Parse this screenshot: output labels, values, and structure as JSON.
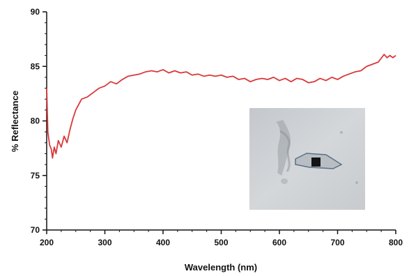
{
  "chart_data": {
    "type": "line",
    "title": "",
    "xlabel": "Wavelength (nm)",
    "ylabel": "% Reflectance",
    "xlim": [
      200,
      800
    ],
    "ylim": [
      70,
      90
    ],
    "xticks": [
      200,
      300,
      400,
      500,
      600,
      700,
      800
    ],
    "yticks": [
      70,
      75,
      80,
      85,
      90
    ],
    "grid": false,
    "legend": "none",
    "series": [
      {
        "color": "#d9383a",
        "x": [
          200,
          202,
          205,
          208,
          210,
          213,
          216,
          220,
          225,
          230,
          235,
          240,
          245,
          250,
          260,
          270,
          280,
          290,
          300,
          310,
          320,
          330,
          340,
          350,
          360,
          370,
          380,
          390,
          400,
          410,
          420,
          430,
          440,
          450,
          460,
          470,
          480,
          490,
          500,
          510,
          520,
          530,
          540,
          550,
          560,
          570,
          580,
          590,
          600,
          610,
          620,
          630,
          640,
          650,
          660,
          670,
          680,
          690,
          700,
          710,
          720,
          730,
          740,
          750,
          760,
          770,
          780,
          785,
          790,
          795,
          800
        ],
        "y": [
          83.0,
          79.0,
          77.8,
          77.4,
          76.6,
          77.6,
          77.0,
          78.2,
          77.6,
          78.6,
          78.0,
          79.2,
          80.2,
          81.0,
          82.0,
          82.2,
          82.6,
          83.0,
          83.2,
          83.6,
          83.4,
          83.8,
          84.1,
          84.2,
          84.3,
          84.5,
          84.6,
          84.5,
          84.7,
          84.4,
          84.6,
          84.4,
          84.5,
          84.2,
          84.3,
          84.1,
          84.2,
          84.1,
          84.2,
          84.0,
          84.1,
          83.8,
          83.9,
          83.6,
          83.8,
          83.9,
          83.8,
          84.0,
          83.7,
          83.9,
          83.6,
          83.9,
          83.8,
          83.5,
          83.6,
          83.9,
          83.7,
          84.0,
          83.8,
          84.1,
          84.3,
          84.5,
          84.6,
          85.0,
          85.2,
          85.4,
          86.1,
          85.8,
          86.0,
          85.8,
          86.0
        ]
      }
    ]
  }
}
